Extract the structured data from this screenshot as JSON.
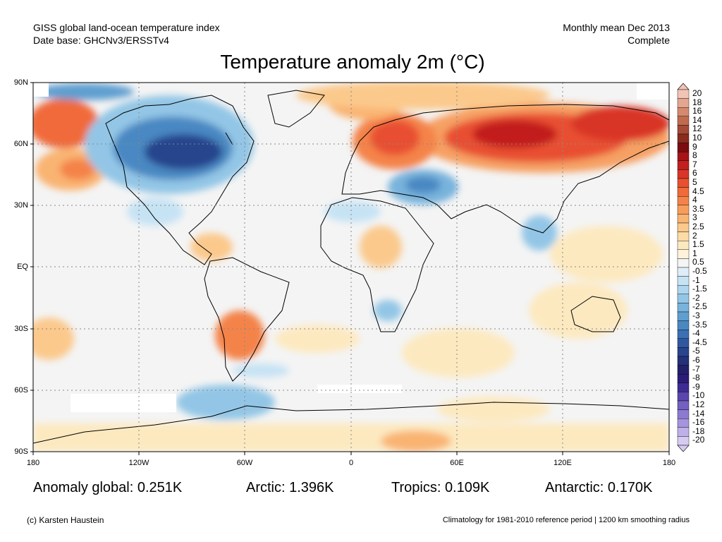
{
  "header": {
    "left_line1": "GISS global land-ocean temperature index",
    "left_line2": "Date base: GHCNv3/ERSSTv4",
    "right_line1": "Monthly mean Dec 2013",
    "right_line2": "Complete"
  },
  "title": "Temperature anomaly 2m (°C)",
  "axes": {
    "lat_labels": [
      "90N",
      "60N",
      "30N",
      "EQ",
      "30S",
      "60S",
      "90S"
    ],
    "lon_labels": [
      "180",
      "120W",
      "60W",
      "0",
      "60E",
      "120E",
      "180"
    ]
  },
  "colorbar": {
    "labels": [
      "20",
      "18",
      "16",
      "14",
      "12",
      "10",
      "9",
      "8",
      "7",
      "6",
      "5",
      "4.5",
      "4",
      "3.5",
      "3",
      "2.5",
      "2",
      "1.5",
      "1",
      "0.5",
      "-0.5",
      "-1",
      "-1.5",
      "-2",
      "-2.5",
      "-3",
      "-3.5",
      "-4",
      "-4.5",
      "-5",
      "-6",
      "-7",
      "-8",
      "-9",
      "-10",
      "-12",
      "-14",
      "-16",
      "-18",
      "-20"
    ],
    "colors": [
      "#f2c4b6",
      "#e4a68f",
      "#d48a6e",
      "#c06a4e",
      "#a44a36",
      "#8a2c1e",
      "#7a0c12",
      "#a61418",
      "#c21f1e",
      "#d93428",
      "#e85030",
      "#f06a3a",
      "#f4834a",
      "#f79d5c",
      "#f9b472",
      "#fbc98c",
      "#fcdba6",
      "#fde9c0",
      "#fef3da",
      "#f4f4f4",
      "#deedf8",
      "#c6e3f4",
      "#aed6ee",
      "#93c6e6",
      "#78b3dc",
      "#5f9fd0",
      "#4a88c2",
      "#3b70b2",
      "#3058a0",
      "#28448c",
      "#23307a",
      "#22206a",
      "#2c1c7a",
      "#3e2c94",
      "#5a46ac",
      "#7460c0",
      "#8c7ad0",
      "#a694de",
      "#beb0e8",
      "#d6ccf2"
    ]
  },
  "stats": {
    "global": "Anomaly global: 0.251K",
    "arctic": "Arctic: 1.396K",
    "tropics": "Tropics: 0.109K",
    "antarctic": "Antarctic: 0.170K"
  },
  "footer": {
    "credit": "(c) Karsten Haustein",
    "note": "Climatology for 1981-2010 reference period | 1200 km smoothing radius"
  }
}
